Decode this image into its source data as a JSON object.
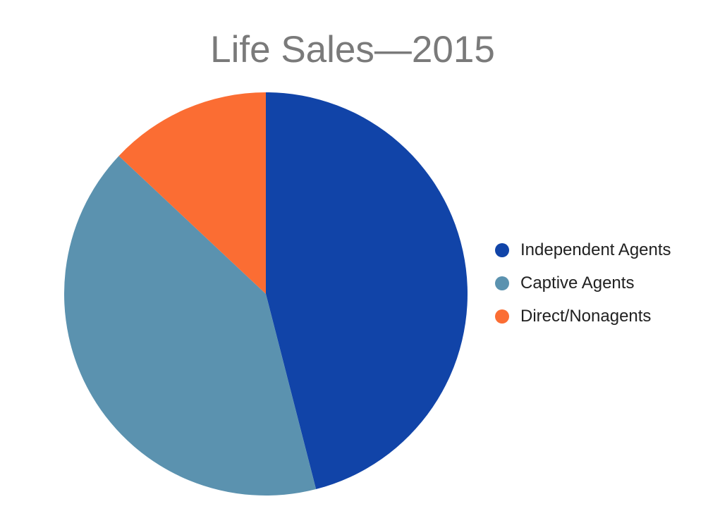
{
  "title": {
    "text": "Life Sales—2015",
    "color": "#7a7a7a"
  },
  "chart_data": {
    "type": "pie",
    "title": "Life Sales—2015",
    "values_unit": "percent_of_total",
    "start_angle_deg": 0,
    "direction": "clockwise",
    "legend_position": "right",
    "background_color": "#ffffff",
    "slices": [
      {
        "label": "Independent Agents",
        "value": 46,
        "color": "#1144A8"
      },
      {
        "label": "Captive Agents",
        "value": 41,
        "color": "#5B92AF"
      },
      {
        "label": "Direct/Nonagents",
        "value": 13,
        "color": "#FB6D33"
      }
    ]
  },
  "legend": {
    "text_color": "#212121"
  }
}
